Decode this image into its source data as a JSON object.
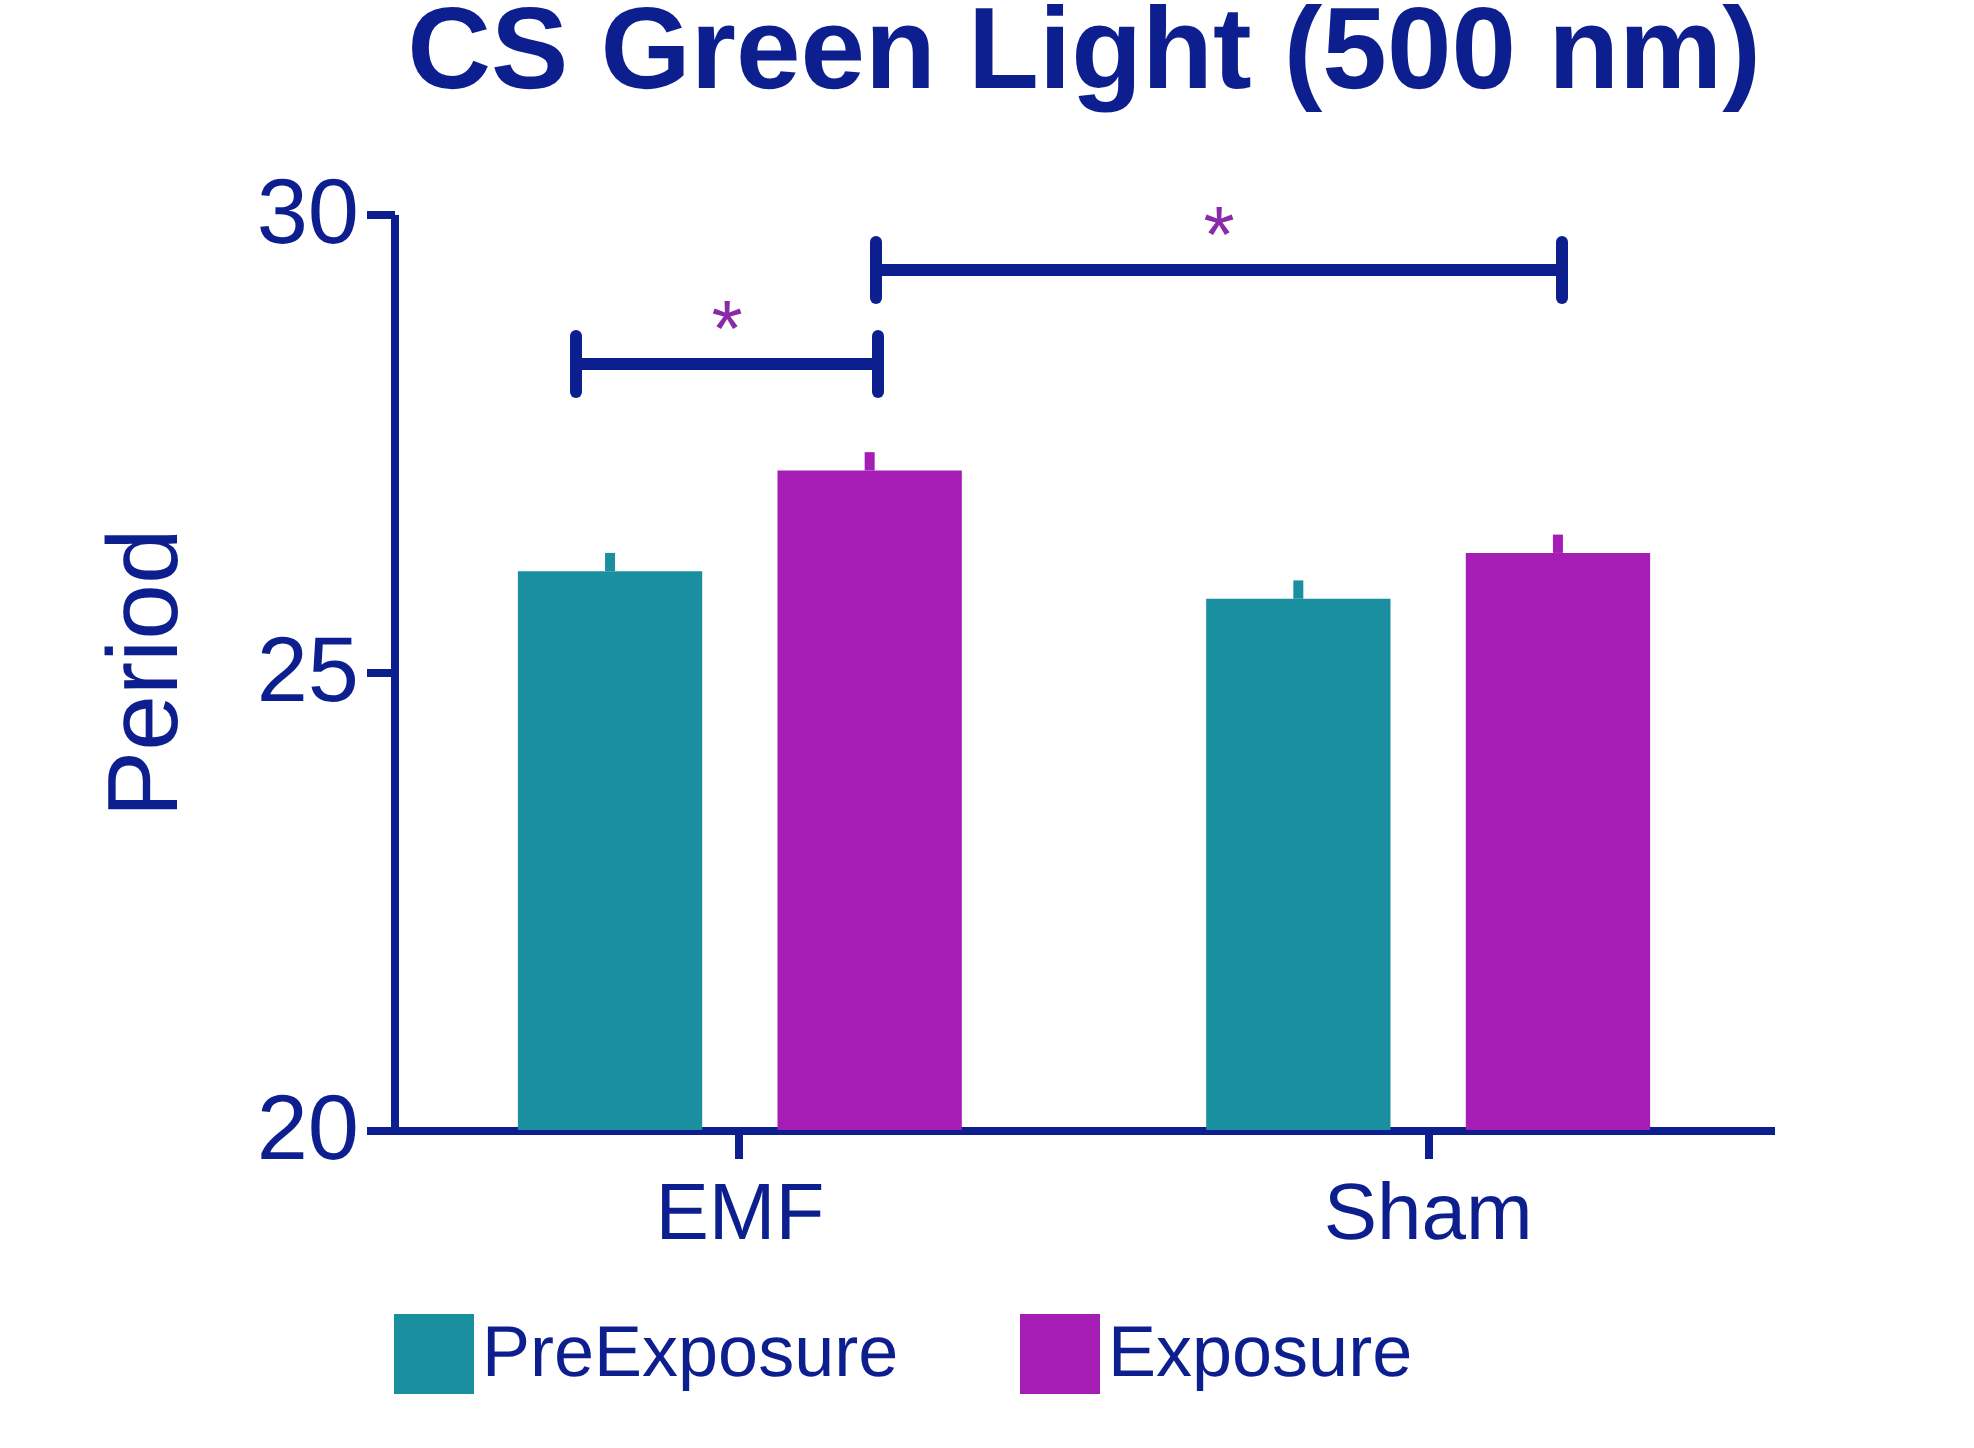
{
  "chart_data": {
    "type": "bar",
    "title": "CS Green Light (500 nm)",
    "ylabel": "Period",
    "categories": [
      "EMF",
      "Sham"
    ],
    "series": [
      {
        "name": "PreExposure",
        "color": "#1a8fa0",
        "values": [
          26.1,
          25.8
        ],
        "errors": [
          [
            26.1,
            26.3
          ],
          [
            25.8,
            26.0
          ]
        ]
      },
      {
        "name": "Exposure",
        "color": "#a51db5",
        "values": [
          27.2,
          26.3
        ],
        "errors": [
          [
            27.2,
            27.4
          ],
          [
            26.3,
            26.5
          ]
        ]
      }
    ],
    "ylim": [
      20,
      30
    ],
    "yticks": [
      20,
      25,
      30
    ],
    "grid": false,
    "legend": "bottom",
    "annotations": [
      "*",
      "*"
    ]
  }
}
